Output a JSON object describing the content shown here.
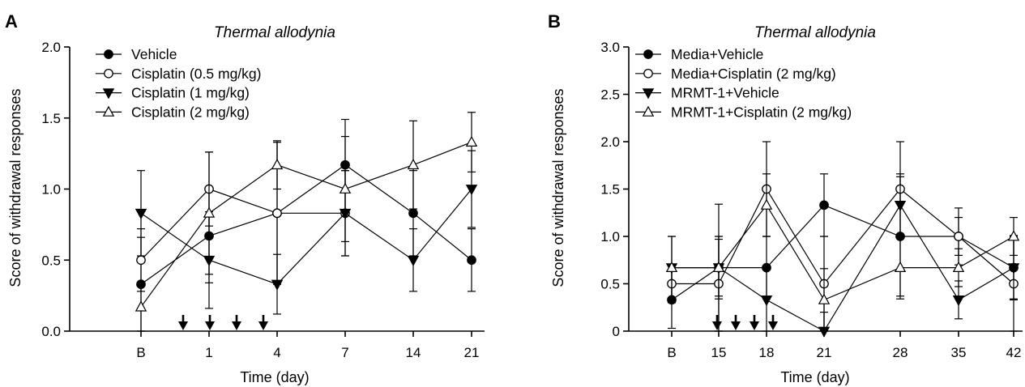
{
  "chart_data": [
    {
      "panel": "A",
      "type": "line",
      "title": "Thermal allodynia",
      "xlabel": "Time (day)",
      "ylabel": "Score of withdrawal responses",
      "categories": [
        "B",
        "1",
        "4",
        "7",
        "14",
        "21"
      ],
      "ylim": [
        0,
        2.0
      ],
      "yticks": [
        "0.0",
        "0.5",
        "1.0",
        "1.5",
        "2.0"
      ],
      "arrow_days": [
        "0",
        "1",
        "2",
        "3"
      ],
      "legend_position": "top-left",
      "series": [
        {
          "name": "Vehicle",
          "marker": "filled-circle",
          "values": [
            0.33,
            0.67,
            0.83,
            1.17,
            0.83,
            0.5
          ],
          "err": [
            0.33,
            0.33,
            0.5,
            0.32,
            0.3,
            0.22
          ]
        },
        {
          "name": "Cisplatin (0.5 mg/kg)",
          "marker": "open-circle",
          "values": [
            0.5,
            1.0,
            0.83,
            0.83,
            null,
            null
          ],
          "err": [
            0.22,
            0.26,
            0.5,
            0.3,
            null,
            null
          ]
        },
        {
          "name": "Cisplatin (1 mg/kg)",
          "marker": "filled-triangle-down",
          "values": [
            0.83,
            0.5,
            0.33,
            0.83,
            0.5,
            1.0
          ],
          "err": [
            0.3,
            0.34,
            0.21,
            0.3,
            0.22,
            0.27
          ]
        },
        {
          "name": "Cisplatin (2 mg/kg)",
          "marker": "open-triangle-up",
          "values": [
            0.17,
            0.83,
            1.17,
            1.0,
            1.17,
            1.33
          ],
          "err": [
            0.17,
            0.43,
            0.17,
            0.37,
            0.31,
            0.21
          ]
        }
      ]
    },
    {
      "panel": "B",
      "type": "line",
      "title": "Thermal allodynia",
      "xlabel": "Time (day)",
      "ylabel": "Score of withdrawal responses",
      "categories": [
        "B",
        "15",
        "18",
        "21",
        "28",
        "35",
        "42"
      ],
      "ylim": [
        0,
        3.0
      ],
      "yticks": [
        "0",
        "0.5",
        "1.0",
        "1.5",
        "2.0",
        "2.5",
        "3.0"
      ],
      "arrow_days": [
        "14",
        "15",
        "16",
        "17"
      ],
      "legend_position": "top-left",
      "series": [
        {
          "name": "Media+Vehicle",
          "marker": "filled-circle",
          "values": [
            0.33,
            0.67,
            0.67,
            1.33,
            1.0,
            1.0,
            0.67
          ],
          "err": [
            0.3,
            0.3,
            0.33,
            0.33,
            0.63,
            0.3,
            0.34
          ]
        },
        {
          "name": "Media+Cisplatin (2 mg/kg)",
          "marker": "open-circle",
          "values": [
            0.5,
            0.5,
            1.5,
            0.5,
            1.5,
            1.0,
            0.5
          ],
          "err": [
            0.2,
            0.5,
            0.5,
            0.5,
            0.5,
            0.2,
            0.5
          ]
        },
        {
          "name": "MRMT-1+Vehicle",
          "marker": "filled-triangle-down",
          "values": [
            0.67,
            0.67,
            0.33,
            0.0,
            1.33,
            0.33,
            0.67
          ],
          "err": [
            0.33,
            0.67,
            0.33,
            0.2,
            0.33,
            0.2,
            0.33
          ]
        },
        {
          "name": "MRMT-1+Cisplatin (2 mg/kg)",
          "marker": "open-triangle-up",
          "values": [
            0.67,
            0.67,
            1.33,
            0.33,
            0.67,
            0.67,
            1.0
          ],
          "err": [
            0.33,
            0.33,
            0.33,
            0.33,
            0.33,
            0.2,
            0.2
          ]
        }
      ]
    }
  ]
}
